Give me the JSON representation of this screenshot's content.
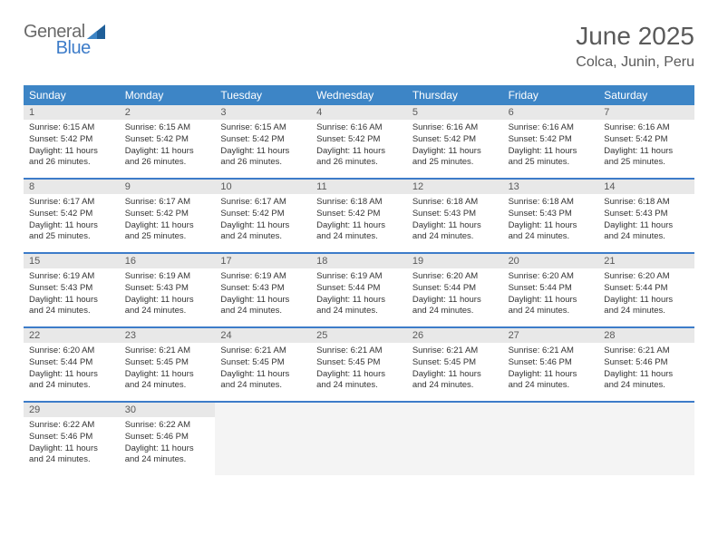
{
  "logo": {
    "general": "General",
    "blue": "Blue",
    "shape_color": "#1f5f99"
  },
  "title": "June 2025",
  "location": "Colca, Junin, Peru",
  "colors": {
    "header_bg": "#3d85c6",
    "border": "#3d7cc9",
    "daynum_bg": "#e8e8e8",
    "empty_bg": "#f4f4f4",
    "text_dark": "#333333",
    "text_muted": "#5a5a5a"
  },
  "day_names": [
    "Sunday",
    "Monday",
    "Tuesday",
    "Wednesday",
    "Thursday",
    "Friday",
    "Saturday"
  ],
  "days": [
    {
      "n": 1,
      "sunrise": "6:15 AM",
      "sunset": "5:42 PM",
      "daylight": "11 hours and 26 minutes."
    },
    {
      "n": 2,
      "sunrise": "6:15 AM",
      "sunset": "5:42 PM",
      "daylight": "11 hours and 26 minutes."
    },
    {
      "n": 3,
      "sunrise": "6:15 AM",
      "sunset": "5:42 PM",
      "daylight": "11 hours and 26 minutes."
    },
    {
      "n": 4,
      "sunrise": "6:16 AM",
      "sunset": "5:42 PM",
      "daylight": "11 hours and 26 minutes."
    },
    {
      "n": 5,
      "sunrise": "6:16 AM",
      "sunset": "5:42 PM",
      "daylight": "11 hours and 25 minutes."
    },
    {
      "n": 6,
      "sunrise": "6:16 AM",
      "sunset": "5:42 PM",
      "daylight": "11 hours and 25 minutes."
    },
    {
      "n": 7,
      "sunrise": "6:16 AM",
      "sunset": "5:42 PM",
      "daylight": "11 hours and 25 minutes."
    },
    {
      "n": 8,
      "sunrise": "6:17 AM",
      "sunset": "5:42 PM",
      "daylight": "11 hours and 25 minutes."
    },
    {
      "n": 9,
      "sunrise": "6:17 AM",
      "sunset": "5:42 PM",
      "daylight": "11 hours and 25 minutes."
    },
    {
      "n": 10,
      "sunrise": "6:17 AM",
      "sunset": "5:42 PM",
      "daylight": "11 hours and 24 minutes."
    },
    {
      "n": 11,
      "sunrise": "6:18 AM",
      "sunset": "5:42 PM",
      "daylight": "11 hours and 24 minutes."
    },
    {
      "n": 12,
      "sunrise": "6:18 AM",
      "sunset": "5:43 PM",
      "daylight": "11 hours and 24 minutes."
    },
    {
      "n": 13,
      "sunrise": "6:18 AM",
      "sunset": "5:43 PM",
      "daylight": "11 hours and 24 minutes."
    },
    {
      "n": 14,
      "sunrise": "6:18 AM",
      "sunset": "5:43 PM",
      "daylight": "11 hours and 24 minutes."
    },
    {
      "n": 15,
      "sunrise": "6:19 AM",
      "sunset": "5:43 PM",
      "daylight": "11 hours and 24 minutes."
    },
    {
      "n": 16,
      "sunrise": "6:19 AM",
      "sunset": "5:43 PM",
      "daylight": "11 hours and 24 minutes."
    },
    {
      "n": 17,
      "sunrise": "6:19 AM",
      "sunset": "5:43 PM",
      "daylight": "11 hours and 24 minutes."
    },
    {
      "n": 18,
      "sunrise": "6:19 AM",
      "sunset": "5:44 PM",
      "daylight": "11 hours and 24 minutes."
    },
    {
      "n": 19,
      "sunrise": "6:20 AM",
      "sunset": "5:44 PM",
      "daylight": "11 hours and 24 minutes."
    },
    {
      "n": 20,
      "sunrise": "6:20 AM",
      "sunset": "5:44 PM",
      "daylight": "11 hours and 24 minutes."
    },
    {
      "n": 21,
      "sunrise": "6:20 AM",
      "sunset": "5:44 PM",
      "daylight": "11 hours and 24 minutes."
    },
    {
      "n": 22,
      "sunrise": "6:20 AM",
      "sunset": "5:44 PM",
      "daylight": "11 hours and 24 minutes."
    },
    {
      "n": 23,
      "sunrise": "6:21 AM",
      "sunset": "5:45 PM",
      "daylight": "11 hours and 24 minutes."
    },
    {
      "n": 24,
      "sunrise": "6:21 AM",
      "sunset": "5:45 PM",
      "daylight": "11 hours and 24 minutes."
    },
    {
      "n": 25,
      "sunrise": "6:21 AM",
      "sunset": "5:45 PM",
      "daylight": "11 hours and 24 minutes."
    },
    {
      "n": 26,
      "sunrise": "6:21 AM",
      "sunset": "5:45 PM",
      "daylight": "11 hours and 24 minutes."
    },
    {
      "n": 27,
      "sunrise": "6:21 AM",
      "sunset": "5:46 PM",
      "daylight": "11 hours and 24 minutes."
    },
    {
      "n": 28,
      "sunrise": "6:21 AM",
      "sunset": "5:46 PM",
      "daylight": "11 hours and 24 minutes."
    },
    {
      "n": 29,
      "sunrise": "6:22 AM",
      "sunset": "5:46 PM",
      "daylight": "11 hours and 24 minutes."
    },
    {
      "n": 30,
      "sunrise": "6:22 AM",
      "sunset": "5:46 PM",
      "daylight": "11 hours and 24 minutes."
    }
  ],
  "labels": {
    "sunrise": "Sunrise:",
    "sunset": "Sunset:",
    "daylight": "Daylight:"
  },
  "layout": {
    "first_day_offset": 0,
    "total_cells": 35
  }
}
